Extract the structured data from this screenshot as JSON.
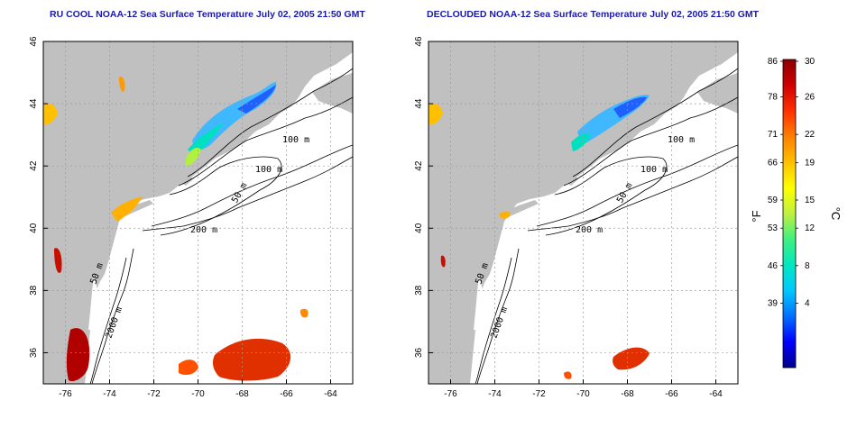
{
  "panels": [
    {
      "id": "left",
      "title": "RU COOL NOAA-12 Sea Surface Temperature July 02, 2005 21:50 GMT"
    },
    {
      "id": "right",
      "title": "DECLOUDED NOAA-12 Sea Surface Temperature July 02, 2005 21:50 GMT"
    }
  ],
  "map": {
    "lon_range": [
      -77,
      -63
    ],
    "lat_range": [
      35,
      46
    ],
    "lon_ticks": [
      -76,
      -74,
      -72,
      -70,
      -68,
      -66,
      -64
    ],
    "lat_ticks": [
      36,
      38,
      40,
      42,
      44,
      46
    ],
    "grid": true,
    "land_color": "#c0c0c0",
    "water_color": "#ffffff",
    "contour_labels": [
      "100 m",
      "100 m",
      "50 m",
      "200 m",
      "50 m",
      "2000 m"
    ]
  },
  "colorbar": {
    "fahrenheit_ticks": [
      "86",
      "78",
      "71",
      "66",
      "59",
      "53",
      "46",
      "39"
    ],
    "celsius_ticks": [
      "30",
      "26",
      "22",
      "19",
      "15",
      "12",
      "8",
      "4"
    ],
    "fahrenheit_unit": "°F",
    "celsius_unit": "°C",
    "colors": [
      "#00008b",
      "#0000ff",
      "#0070ff",
      "#00c8ff",
      "#00e8c0",
      "#40f080",
      "#c0f040",
      "#ffff00",
      "#ffc000",
      "#ff8000",
      "#ff3000",
      "#d00000",
      "#8b0000"
    ]
  }
}
